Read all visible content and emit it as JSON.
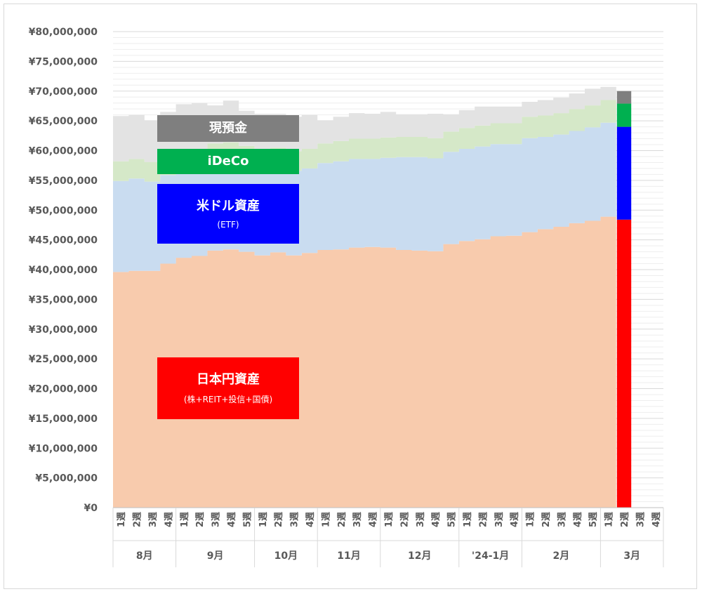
{
  "chart_data": {
    "type": "area",
    "stacked": true,
    "y_ticks": [
      "¥0",
      "¥5,000,000",
      "¥10,000,000",
      "¥15,000,000",
      "¥20,000,000",
      "¥25,000,000",
      "¥30,000,000",
      "¥35,000,000",
      "¥40,000,000",
      "¥45,000,000",
      "¥50,000,000",
      "¥55,000,000",
      "¥60,000,000",
      "¥65,000,000",
      "¥70,000,000",
      "¥75,000,000",
      "¥80,000,000"
    ],
    "ylim": [
      0,
      80000000
    ],
    "grid": true,
    "months": [
      {
        "label": "8月",
        "weeks": [
          "1週",
          "2週",
          "3週",
          "4週"
        ]
      },
      {
        "label": "9月",
        "weeks": [
          "1週",
          "2週",
          "3週",
          "4週",
          "5週"
        ]
      },
      {
        "label": "10月",
        "weeks": [
          "1週",
          "2週",
          "3週",
          "4週"
        ]
      },
      {
        "label": "11月",
        "weeks": [
          "1週",
          "2週",
          "3週",
          "4週"
        ]
      },
      {
        "label": "12月",
        "weeks": [
          "1週",
          "2週",
          "3週",
          "4週",
          "5週"
        ]
      },
      {
        "label": "'24-1月",
        "weeks": [
          "1週",
          "2週",
          "3週",
          "4週"
        ]
      },
      {
        "label": "2月",
        "weeks": [
          "1週",
          "2週",
          "3週",
          "4週",
          "5週"
        ]
      },
      {
        "label": "3月",
        "weeks": [
          "1週",
          "2週",
          "3週",
          "4週"
        ]
      }
    ],
    "current_index": 32,
    "series": [
      {
        "name": "日本円資産",
        "sub": "(株+REIT+投信+国債)",
        "color": "#ff0000",
        "area_color": "#f8cbad",
        "values": [
          39600000,
          39800000,
          39800000,
          41000000,
          42000000,
          42300000,
          43200000,
          43400000,
          43000000,
          42400000,
          42900000,
          42400000,
          42800000,
          43300000,
          43400000,
          43700000,
          43800000,
          43700000,
          43300000,
          43200000,
          43100000,
          44300000,
          44800000,
          45100000,
          45600000,
          45700000,
          46300000,
          46800000,
          47200000,
          47800000,
          48200000,
          48900000,
          48400000,
          null,
          null
        ]
      },
      {
        "name": "米ドル資産",
        "sub": "(ETF)",
        "color": "#0000ff",
        "area_color": "#c9dcf0",
        "values": [
          15300000,
          15500000,
          15000000,
          14900000,
          14900000,
          14600000,
          14700000,
          14700000,
          14500000,
          14500000,
          14300000,
          14200000,
          14200000,
          14600000,
          14800000,
          14900000,
          14800000,
          15100000,
          15600000,
          15700000,
          15600000,
          15500000,
          15500000,
          15600000,
          15500000,
          15400000,
          15800000,
          15500000,
          15500000,
          15500000,
          15700000,
          15800000,
          15600000,
          null,
          null
        ]
      },
      {
        "name": "iDeCo",
        "sub": "",
        "color": "#00b050",
        "area_color": "#d5e8c8",
        "values": [
          3300000,
          3300000,
          3300000,
          3300000,
          3300000,
          3300000,
          3300000,
          3300000,
          3300000,
          3300000,
          3300000,
          3300000,
          3300000,
          3300000,
          3400000,
          3400000,
          3400000,
          3400000,
          3400000,
          3400000,
          3400000,
          3400000,
          3500000,
          3500000,
          3500000,
          3500000,
          3600000,
          3600000,
          3600000,
          3700000,
          3700000,
          3800000,
          3900000,
          null,
          null
        ]
      },
      {
        "name": "現預金",
        "sub": "",
        "color": "#7f7f7f",
        "area_color": "#e3e3e3",
        "values": [
          7600000,
          7400000,
          7000000,
          7300000,
          7600000,
          7800000,
          6400000,
          7000000,
          5900000,
          6000000,
          5700000,
          5800000,
          5700000,
          3900000,
          4100000,
          4300000,
          4200000,
          4300000,
          3800000,
          3800000,
          4100000,
          2900000,
          3000000,
          3200000,
          2800000,
          2800000,
          2500000,
          2600000,
          2600000,
          2600000,
          2800000,
          2200000,
          2100000,
          null,
          null
        ]
      }
    ]
  }
}
